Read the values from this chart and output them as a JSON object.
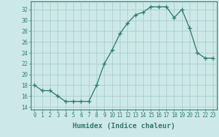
{
  "x": [
    0,
    1,
    2,
    3,
    4,
    5,
    6,
    7,
    8,
    9,
    10,
    11,
    12,
    13,
    14,
    15,
    16,
    17,
    18,
    19,
    20,
    21,
    22,
    23
  ],
  "y": [
    18,
    17,
    17,
    16,
    15,
    15,
    15,
    15,
    18,
    22,
    24.5,
    27.5,
    29.5,
    31,
    31.5,
    32.5,
    32.5,
    32.5,
    30.5,
    32,
    28.5,
    24,
    23,
    23
  ],
  "line_color": "#2e7d6e",
  "marker": "+",
  "marker_size": 4,
  "bg_color": "#cde8e8",
  "grid_color": "#aacccc",
  "xlabel": "Humidex (Indice chaleur)",
  "ylim": [
    13.5,
    33.5
  ],
  "xlim": [
    -0.5,
    23.5
  ],
  "yticks": [
    14,
    16,
    18,
    20,
    22,
    24,
    26,
    28,
    30,
    32
  ],
  "xticks": [
    0,
    1,
    2,
    3,
    4,
    5,
    6,
    7,
    8,
    9,
    10,
    11,
    12,
    13,
    14,
    15,
    16,
    17,
    18,
    19,
    20,
    21,
    22,
    23
  ],
  "tick_color": "#2e7d6e",
  "axis_color": "#2e7d6e",
  "label_color": "#2e7d6e",
  "font_size_ticks": 5.5,
  "font_size_label": 7.5,
  "line_width": 1.0,
  "marker_edge_width": 1.0
}
